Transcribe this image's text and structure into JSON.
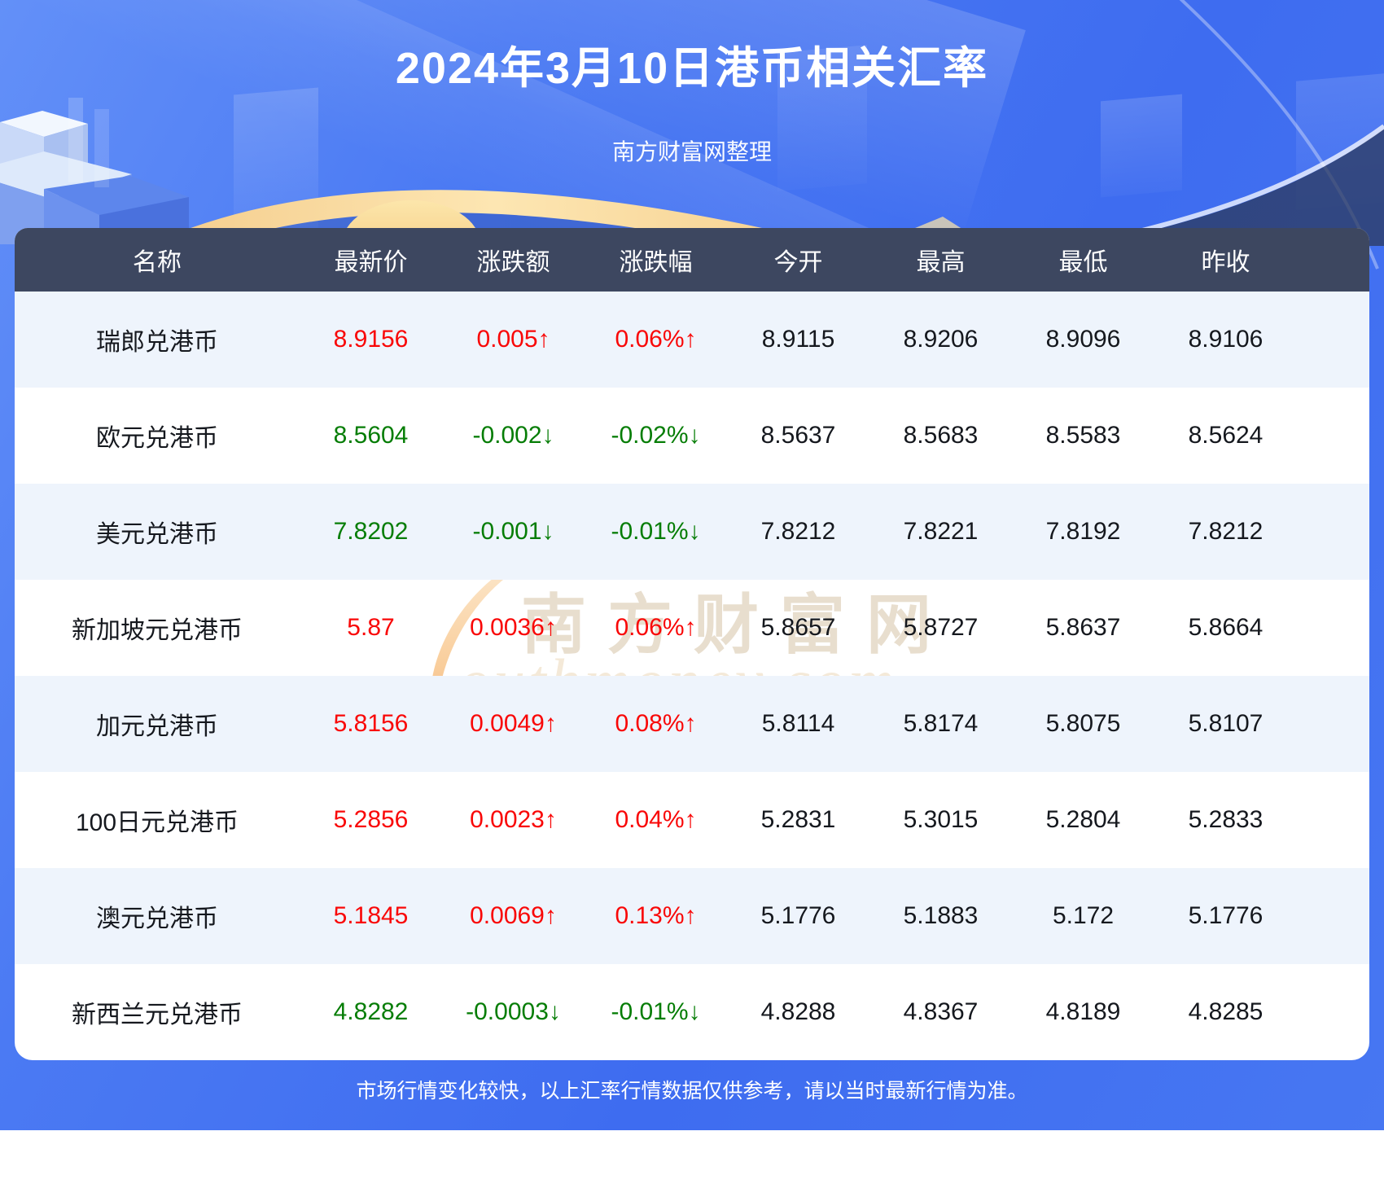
{
  "header": {
    "title": "2024年3月10日港币相关汇率",
    "subtitle": "南方财富网整理"
  },
  "chart_data": {
    "type": "table",
    "title": "2024年3月10日港币相关汇率",
    "columns": [
      "名称",
      "最新价",
      "涨跌额",
      "涨跌幅",
      "今开",
      "最高",
      "最低",
      "昨收"
    ],
    "row_keys": [
      "name",
      "latest",
      "change",
      "change_pct",
      "open",
      "high",
      "low",
      "prev_close"
    ],
    "rows": [
      {
        "name": "瑞郎兑港币",
        "latest": "8.9156",
        "change": "0.005↑",
        "change_pct": "0.06%↑",
        "open": "8.9115",
        "high": "8.9206",
        "low": "8.9096",
        "prev_close": "8.9106",
        "trend": "up"
      },
      {
        "name": "欧元兑港币",
        "latest": "8.5604",
        "change": "-0.002↓",
        "change_pct": "-0.02%↓",
        "open": "8.5637",
        "high": "8.5683",
        "low": "8.5583",
        "prev_close": "8.5624",
        "trend": "down"
      },
      {
        "name": "美元兑港币",
        "latest": "7.8202",
        "change": "-0.001↓",
        "change_pct": "-0.01%↓",
        "open": "7.8212",
        "high": "7.8221",
        "low": "7.8192",
        "prev_close": "7.8212",
        "trend": "down"
      },
      {
        "name": "新加坡元兑港币",
        "latest": "5.87",
        "change": "0.0036↑",
        "change_pct": "0.06%↑",
        "open": "5.8657",
        "high": "5.8727",
        "low": "5.8637",
        "prev_close": "5.8664",
        "trend": "up"
      },
      {
        "name": "加元兑港币",
        "latest": "5.8156",
        "change": "0.0049↑",
        "change_pct": "0.08%↑",
        "open": "5.8114",
        "high": "5.8174",
        "low": "5.8075",
        "prev_close": "5.8107",
        "trend": "up"
      },
      {
        "name": "100日元兑港币",
        "latest": "5.2856",
        "change": "0.0023↑",
        "change_pct": "0.04%↑",
        "open": "5.2831",
        "high": "5.3015",
        "low": "5.2804",
        "prev_close": "5.2833",
        "trend": "up"
      },
      {
        "name": "澳元兑港币",
        "latest": "5.1845",
        "change": "0.0069↑",
        "change_pct": "0.13%↑",
        "open": "5.1776",
        "high": "5.1883",
        "low": "5.172",
        "prev_close": "5.1776",
        "trend": "up"
      },
      {
        "name": "新西兰元兑港币",
        "latest": "4.8282",
        "change": "-0.0003↓",
        "change_pct": "-0.01%↓",
        "open": "4.8288",
        "high": "4.8367",
        "low": "4.8189",
        "prev_close": "4.8285",
        "trend": "down"
      }
    ]
  },
  "watermark": {
    "cn": "南方财富网",
    "en": "outhmoney.com"
  },
  "footer": {
    "note": "市场行情变化较快，以上汇率行情数据仅供参考，请以当时最新行情为准。"
  },
  "colors": {
    "up_red": "#f90707",
    "down_green": "#067d06",
    "table_header_bg": "#3d4760",
    "row_alt_bg": "#eef4fc",
    "hero_blue": "#4777f2",
    "gold_arc": "#f8d79b"
  }
}
